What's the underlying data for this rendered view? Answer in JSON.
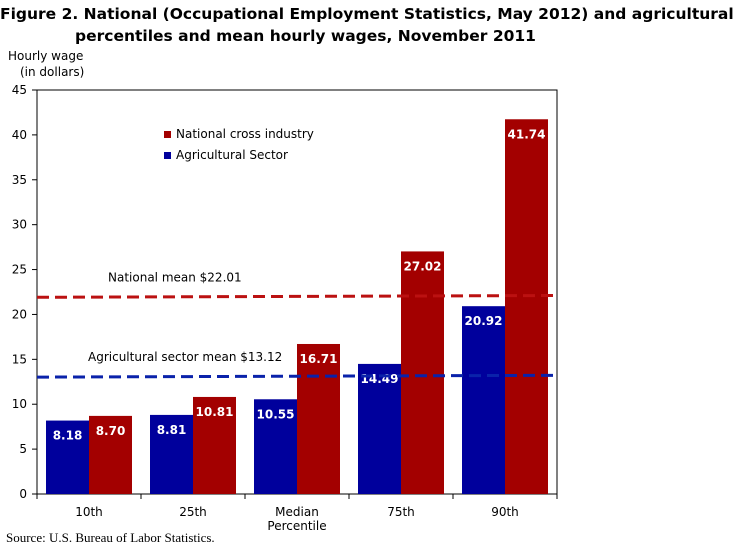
{
  "title_line1": "Figure 2. National (Occupational Employment Statistics, May 2012) and agricultural",
  "title_line2": "percentiles and mean hourly wages, November 2011",
  "ylabel_line1": "Hourly wage",
  "ylabel_line2": "(in dollars)",
  "source": "Source: U.S. Bureau of Labor Statistics.",
  "colors": {
    "agricultural": "#00009c",
    "national": "#a30000",
    "national_line": "#bb1111",
    "agricultural_line": "#0a22aa"
  },
  "chart_data": {
    "type": "bar",
    "xlabel": "Percentile",
    "ylabel": "Hourly wage (in dollars)",
    "ylim": [
      0,
      45
    ],
    "yticks": [
      0,
      5,
      10,
      15,
      20,
      25,
      30,
      35,
      40,
      45
    ],
    "categories": [
      "10th",
      "25th",
      "Median",
      "75th",
      "90th"
    ],
    "series": [
      {
        "name": "Agricultural Sector",
        "values": [
          8.18,
          8.81,
          10.55,
          14.49,
          20.92
        ],
        "labels": [
          "8.18",
          "8.81",
          "10.55",
          "14.49",
          "20.92"
        ]
      },
      {
        "name": "National cross industry",
        "values": [
          8.7,
          10.81,
          16.71,
          27.02,
          41.74
        ],
        "labels": [
          "8.70",
          "10.81",
          "16.71",
          "27.02",
          "41.74"
        ]
      }
    ],
    "legend_order": [
      "National cross industry",
      "Agricultural Sector"
    ],
    "legend_position": "top-left",
    "reference_lines": [
      {
        "label": "National mean $22.01",
        "value": 22.01
      },
      {
        "label": "Agricultural  sector mean $13.12",
        "value": 13.12
      }
    ],
    "grid": false
  }
}
